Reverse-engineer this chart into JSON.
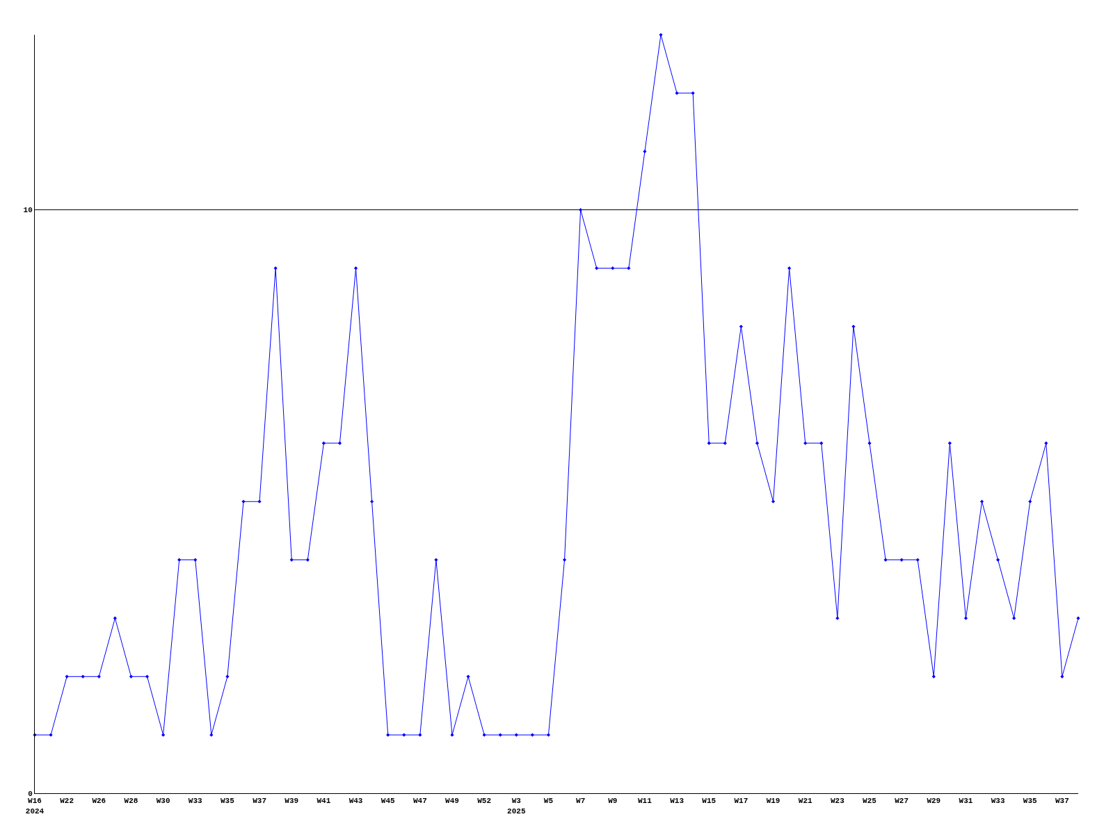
{
  "chart_data": {
    "type": "line",
    "categories": [
      "W16\n2024",
      null,
      "W22",
      null,
      "W26",
      null,
      "W28",
      null,
      "W30",
      null,
      "W33",
      null,
      "W35",
      null,
      "W37",
      null,
      "W39",
      null,
      "W41",
      null,
      "W43",
      null,
      "W45",
      null,
      "W47",
      null,
      "W49",
      null,
      "W52",
      null,
      "W3\n2025",
      null,
      "W5",
      null,
      "W7",
      null,
      "W9",
      null,
      "W11",
      null,
      "W13",
      null,
      "W15",
      null,
      "W17",
      null,
      "W19",
      null,
      "W21",
      null,
      "W23",
      null,
      "W25",
      null,
      "W27",
      null,
      "W29",
      null,
      "W31",
      null,
      "W33",
      null,
      "W35",
      null,
      "W37",
      null
    ],
    "series": [
      {
        "color": "#0000ff",
        "values": [
          1,
          1,
          2,
          2,
          2,
          3,
          2,
          2,
          1,
          4,
          4,
          1,
          2,
          5,
          5,
          9,
          4,
          4,
          6,
          6,
          9,
          5,
          1,
          1,
          1,
          4,
          1,
          2,
          1,
          1,
          1,
          1,
          1,
          4,
          10,
          9,
          9,
          9,
          11,
          13,
          12,
          12,
          6,
          6,
          8,
          6,
          5,
          9,
          6,
          6,
          3,
          8,
          6,
          4,
          4,
          4,
          2,
          6,
          3,
          5,
          4,
          3,
          5,
          6,
          2,
          3
        ]
      }
    ],
    "ylim": [
      0,
      13
    ],
    "yticks": [
      0,
      10
    ],
    "grid": "y",
    "legend": false,
    "marker": "diamond",
    "line_style": "solid"
  }
}
